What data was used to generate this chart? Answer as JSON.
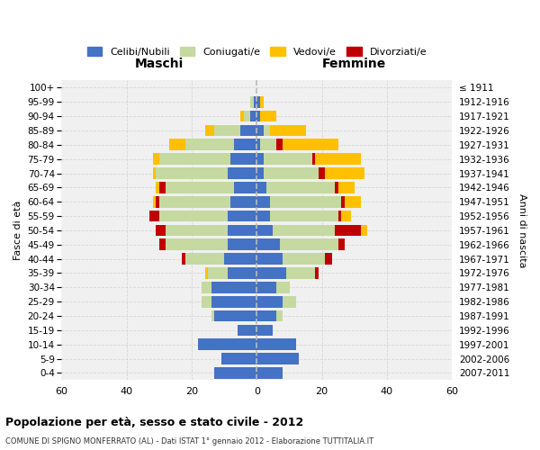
{
  "age_groups": [
    "0-4",
    "5-9",
    "10-14",
    "15-19",
    "20-24",
    "25-29",
    "30-34",
    "35-39",
    "40-44",
    "45-49",
    "50-54",
    "55-59",
    "60-64",
    "65-69",
    "70-74",
    "75-79",
    "80-84",
    "85-89",
    "90-94",
    "95-99",
    "100+"
  ],
  "birth_years": [
    "2007-2011",
    "2002-2006",
    "1997-2001",
    "1992-1996",
    "1987-1991",
    "1982-1986",
    "1977-1981",
    "1972-1976",
    "1967-1971",
    "1962-1966",
    "1957-1961",
    "1952-1956",
    "1947-1951",
    "1942-1946",
    "1937-1941",
    "1932-1936",
    "1927-1931",
    "1922-1926",
    "1917-1921",
    "1912-1916",
    "≤ 1911"
  ],
  "maschi": {
    "celibi": [
      13,
      11,
      18,
      6,
      13,
      14,
      14,
      9,
      10,
      9,
      9,
      9,
      8,
      7,
      9,
      8,
      7,
      5,
      2,
      1,
      0
    ],
    "coniugati": [
      0,
      0,
      0,
      0,
      1,
      3,
      3,
      6,
      12,
      19,
      19,
      21,
      22,
      21,
      22,
      22,
      15,
      8,
      2,
      1,
      0
    ],
    "vedovi": [
      0,
      0,
      0,
      0,
      0,
      0,
      0,
      1,
      0,
      0,
      0,
      0,
      1,
      1,
      1,
      2,
      5,
      3,
      1,
      0,
      0
    ],
    "divorziati": [
      0,
      0,
      0,
      0,
      0,
      0,
      0,
      0,
      1,
      2,
      3,
      3,
      1,
      2,
      0,
      0,
      0,
      0,
      0,
      0,
      0
    ]
  },
  "femmine": {
    "nubili": [
      8,
      13,
      12,
      5,
      6,
      8,
      6,
      9,
      8,
      7,
      5,
      4,
      4,
      3,
      2,
      2,
      1,
      2,
      1,
      1,
      0
    ],
    "coniugate": [
      0,
      0,
      0,
      0,
      2,
      4,
      4,
      9,
      13,
      18,
      19,
      21,
      22,
      21,
      17,
      15,
      5,
      2,
      0,
      0,
      0
    ],
    "vedove": [
      0,
      0,
      0,
      0,
      0,
      0,
      0,
      0,
      0,
      0,
      2,
      3,
      5,
      5,
      12,
      14,
      17,
      11,
      5,
      1,
      0
    ],
    "divorziate": [
      0,
      0,
      0,
      0,
      0,
      0,
      0,
      1,
      2,
      2,
      8,
      1,
      1,
      1,
      2,
      1,
      2,
      0,
      0,
      0,
      0
    ]
  },
  "color_celibi": "#4472c4",
  "color_coniugati": "#c5d9a0",
  "color_vedovi": "#ffc000",
  "color_divorziati": "#c00000",
  "title": "Popolazione per età, sesso e stato civile - 2012",
  "subtitle": "COMUNE DI SPIGNO MONFERRATO (AL) - Dati ISTAT 1° gennaio 2012 - Elaborazione TUTTITALIA.IT",
  "xlabel_left": "Maschi",
  "xlabel_right": "Femmine",
  "ylabel_left": "Fasce di età",
  "ylabel_right": "Anni di nascita",
  "xlim": 60,
  "bg_color": "#f0f0f0",
  "grid_color": "#cccccc"
}
